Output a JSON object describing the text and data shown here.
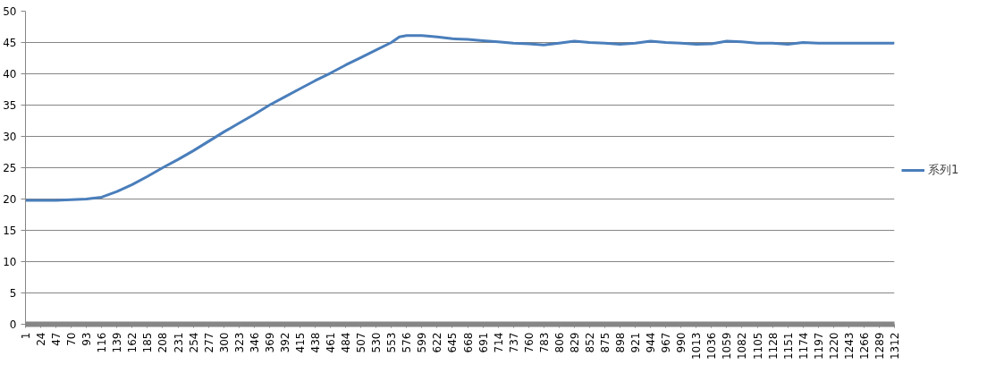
{
  "chart_data": {
    "type": "line",
    "x": [
      1,
      24,
      47,
      70,
      93,
      116,
      139,
      162,
      185,
      208,
      231,
      254,
      277,
      300,
      323,
      346,
      369,
      392,
      415,
      438,
      461,
      484,
      507,
      530,
      553,
      565,
      576,
      599,
      622,
      645,
      668,
      691,
      714,
      737,
      760,
      783,
      806,
      829,
      852,
      875,
      898,
      921,
      944,
      967,
      990,
      1013,
      1036,
      1059,
      1082,
      1105,
      1128,
      1151,
      1174,
      1197,
      1220,
      1243,
      1266,
      1289,
      1312
    ],
    "series": [
      {
        "name": "系列1",
        "color": "#4a7ebb",
        "values": [
          19.8,
          19.8,
          19.8,
          19.9,
          20.0,
          20.3,
          21.2,
          22.3,
          23.6,
          25.0,
          26.3,
          27.7,
          29.2,
          30.7,
          32.1,
          33.5,
          35.0,
          36.3,
          37.6,
          38.9,
          40.1,
          41.4,
          42.6,
          43.8,
          45.0,
          45.9,
          46.1,
          46.1,
          45.9,
          45.6,
          45.5,
          45.3,
          45.1,
          44.9,
          44.8,
          44.6,
          44.9,
          45.2,
          45.0,
          44.9,
          44.7,
          44.9,
          45.2,
          45.0,
          44.9,
          44.7,
          44.8,
          45.2,
          45.1,
          44.9,
          44.9,
          44.7,
          45.0,
          44.9,
          44.9,
          44.9,
          44.9,
          44.9,
          44.9
        ]
      }
    ],
    "xlim": [
      1,
      1312
    ],
    "xticks": [
      1,
      24,
      47,
      70,
      93,
      116,
      139,
      162,
      185,
      208,
      231,
      254,
      277,
      300,
      323,
      346,
      369,
      392,
      415,
      438,
      461,
      484,
      507,
      530,
      553,
      576,
      599,
      622,
      645,
      668,
      691,
      714,
      737,
      760,
      783,
      806,
      829,
      852,
      875,
      898,
      921,
      944,
      967,
      990,
      1013,
      1036,
      1059,
      1082,
      1105,
      1128,
      1151,
      1174,
      1197,
      1220,
      1243,
      1266,
      1289,
      1312
    ],
    "ylim": [
      0,
      50
    ],
    "yticks": [
      0,
      5,
      10,
      15,
      20,
      25,
      30,
      35,
      40,
      45,
      50
    ],
    "grid": "y",
    "legend": "right",
    "marker": "none",
    "line_style": "solid"
  }
}
